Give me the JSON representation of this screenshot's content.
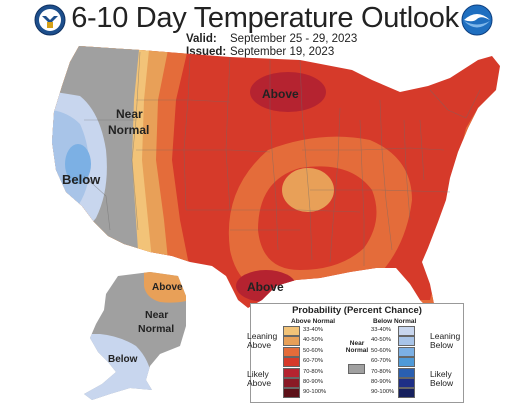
{
  "title": "6-10 Day Temperature Outlook",
  "valid": {
    "label": "Valid:",
    "value": "September 25 - 29, 2023"
  },
  "issued": {
    "label": "Issued:",
    "value": "September 19, 2023"
  },
  "logos": [
    {
      "name": "doc-seal-icon"
    },
    {
      "name": "noaa-logo-icon"
    }
  ],
  "map_labels": {
    "west_below": "Below",
    "west_near_normal_1": "Near",
    "west_near_normal_2": "Normal",
    "north_above": "Above",
    "south_above": "Above",
    "alaska_above": "Above",
    "alaska_near_1": "Near",
    "alaska_near_2": "Normal",
    "alaska_below": "Below"
  },
  "colors": {
    "above_33_40": "#f2c378",
    "above_40_50": "#e8a058",
    "above_50_60": "#e46c3a",
    "above_60_70": "#d63a2a",
    "above_70_80": "#b52330",
    "above_80_90": "#8a1a26",
    "above_90_100": "#5c1018",
    "near_normal": "#a0a0a0",
    "below_33_40": "#c8d6ee",
    "below_40_50": "#a8c4e8",
    "below_50_60": "#7cb0e4",
    "below_60_70": "#4f9ad8",
    "below_70_80": "#2a5fb0",
    "below_80_90": "#1e2f86",
    "below_90_100": "#16205e"
  },
  "legend": {
    "title": "Probability (Percent Chance)",
    "above_header": "Above Normal",
    "below_header": "Below Normal",
    "near_normal": "Near Normal",
    "leaning_above": [
      "Leaning",
      "Above"
    ],
    "likely_above": [
      "Likely",
      "Above"
    ],
    "leaning_below": [
      "Leaning",
      "Below"
    ],
    "likely_below": [
      "Likely",
      "Below"
    ],
    "ranges": [
      "33-40%",
      "40-50%",
      "50-60%",
      "60-70%",
      "70-80%",
      "80-90%",
      "90-100%"
    ]
  }
}
